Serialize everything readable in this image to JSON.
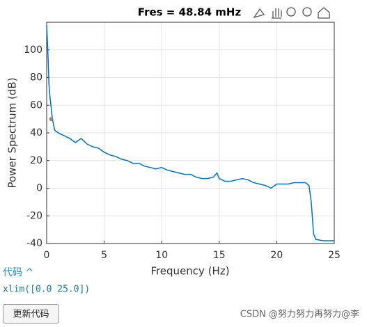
{
  "chart_data": {
    "type": "line",
    "title": "Fres = 48.84 mHz",
    "x_label": "Frequency (Hz)",
    "y_label": "Power Spectrum (dB)",
    "x": [
      0,
      0.1,
      0.2,
      0.3,
      0.5,
      0.7,
      1,
      1.5,
      2,
      2.5,
      3,
      3.5,
      4,
      4.5,
      5,
      5.5,
      6,
      6.5,
      7,
      7.5,
      8,
      8.5,
      9,
      9.5,
      10,
      10.5,
      11,
      11.5,
      12,
      12.5,
      13,
      13.5,
      14,
      14.5,
      14.8,
      15,
      15.5,
      16,
      16.5,
      17,
      17.5,
      18,
      18.5,
      19,
      19.5,
      20,
      20.5,
      21,
      21.5,
      22,
      22.5,
      22.8,
      23,
      23.2,
      23.4,
      24,
      25
    ],
    "values": [
      118,
      100,
      75,
      65,
      50,
      42,
      40,
      38,
      36,
      33,
      36,
      32,
      30,
      29,
      26,
      24,
      23,
      21,
      20,
      18,
      18,
      16,
      15,
      14,
      15,
      13,
      12,
      11,
      10,
      10,
      8,
      7,
      7,
      8,
      11,
      7,
      5,
      5,
      6,
      7,
      6,
      4,
      3,
      2,
      0,
      3,
      3,
      3,
      4,
      4,
      4,
      2,
      -10,
      -33,
      -37,
      -38,
      -38
    ],
    "color": "#0072bd",
    "marker": {
      "x": 0.4,
      "y": 50,
      "color": "#8c8c7a"
    },
    "xlim": [
      0,
      25
    ],
    "xticks": [
      0,
      5,
      10,
      15,
      20,
      25
    ],
    "ylim": [
      -40,
      120
    ],
    "yticks": [
      -40,
      -20,
      0,
      20,
      40,
      60,
      80,
      100
    ],
    "grid": true
  },
  "code_section": {
    "label": "代码 ^",
    "code": "xlim([0.0 25.0])"
  },
  "button": {
    "label": "更新代码"
  },
  "watermark": "CSDN @努力努力再努力@李"
}
